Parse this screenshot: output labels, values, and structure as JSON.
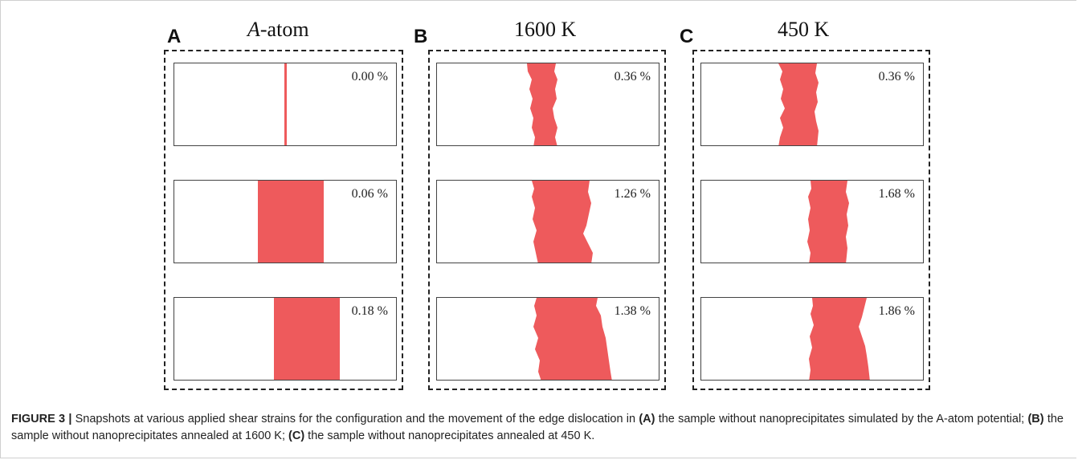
{
  "figure": {
    "panels": [
      {
        "letter": "A",
        "title_italic": "A",
        "title_rest": "-atom",
        "snapshots": [
          {
            "strain": "0.00 %",
            "band": "thin"
          },
          {
            "strain": "0.06 %",
            "band": "straight"
          },
          {
            "strain": "0.18 %",
            "band": "straight"
          }
        ]
      },
      {
        "letter": "B",
        "title_italic": "",
        "title_rest": "1600 K",
        "snapshots": [
          {
            "strain": "0.36 %",
            "band": "wavy"
          },
          {
            "strain": "1.26 %",
            "band": "wavy"
          },
          {
            "strain": "1.38 %",
            "band": "wavy"
          }
        ]
      },
      {
        "letter": "C",
        "title_italic": "",
        "title_rest": "450 K",
        "snapshots": [
          {
            "strain": "0.36 %",
            "band": "wavy"
          },
          {
            "strain": "1.68 %",
            "band": "wavy"
          },
          {
            "strain": "1.86 %",
            "band": "wavy"
          }
        ]
      }
    ],
    "band_color": "#ee5a5c",
    "caption": {
      "label": "FIGURE 3 |",
      "part1": " Snapshots at various applied shear strains for the configuration and the movement of the edge dislocation in ",
      "ref_a": "(A)",
      "part2": " the sample without nanoprecipitates simulated by the A-atom potential; ",
      "ref_b": "(B)",
      "part3": " the sample without nanoprecipitates annealed at 1600 K; ",
      "ref_c": "(C)",
      "part4": " the sample without nanoprecipitates annealed at 450 K."
    }
  }
}
